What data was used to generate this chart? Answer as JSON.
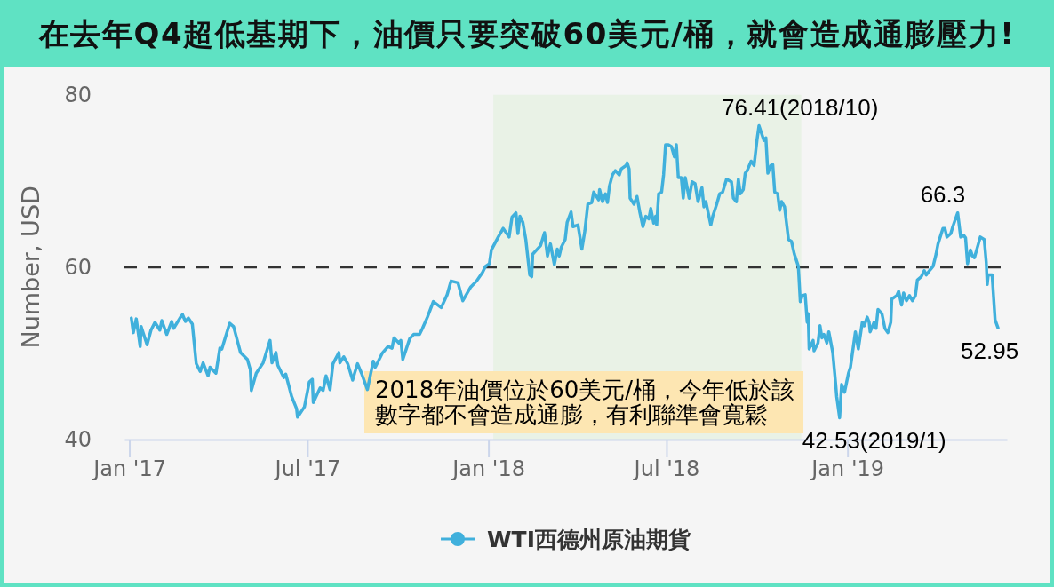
{
  "chart_data": {
    "type": "line",
    "title": "在去年Q4超低基期下，油價只要突破60美元/桶，就會造成通膨壓力!",
    "ylabel": "Number, USD",
    "x": [
      "2017-01-03",
      "2017-01-05",
      "2017-01-08",
      "2017-01-12",
      "2017-01-13",
      "2017-01-19",
      "2017-01-23",
      "2017-01-27",
      "2017-02-01",
      "2017-02-03",
      "2017-02-08",
      "2017-02-13",
      "2017-02-15",
      "2017-02-22",
      "2017-02-24",
      "2017-02-27",
      "2017-03-02",
      "2017-03-06",
      "2017-03-10",
      "2017-03-14",
      "2017-03-17",
      "2017-03-22",
      "2017-03-24",
      "2017-03-30",
      "2017-04-03",
      "2017-04-05",
      "2017-04-13",
      "2017-04-17",
      "2017-04-24",
      "2017-05-01",
      "2017-05-04",
      "2017-05-05",
      "2017-05-10",
      "2017-05-17",
      "2017-05-24",
      "2017-05-26",
      "2017-05-30",
      "2017-06-01",
      "2017-06-07",
      "2017-06-09",
      "2017-06-15",
      "2017-06-20",
      "2017-06-21",
      "2017-06-28",
      "2017-07-03",
      "2017-07-06",
      "2017-07-07",
      "2017-07-14",
      "2017-07-17",
      "2017-07-20",
      "2017-07-24",
      "2017-07-27",
      "2017-08-02",
      "2017-08-03",
      "2017-08-07",
      "2017-08-11",
      "2017-08-16",
      "2017-08-18",
      "2017-08-21",
      "2017-08-25",
      "2017-08-31",
      "2017-09-06",
      "2017-09-08",
      "2017-09-15",
      "2017-09-21",
      "2017-09-25",
      "2017-09-27",
      "2017-10-02",
      "2017-10-04",
      "2017-10-06",
      "2017-10-13",
      "2017-10-17",
      "2017-10-23",
      "2017-10-26",
      "2017-10-31",
      "2017-11-06",
      "2017-11-14",
      "2017-11-20",
      "2017-11-24",
      "2017-12-01",
      "2017-12-06",
      "2017-12-14",
      "2017-12-20",
      "2017-12-26",
      "2017-12-29",
      "2018-01-02",
      "2018-01-04",
      "2018-01-11",
      "2018-01-16",
      "2018-01-22",
      "2018-01-25",
      "2018-01-29",
      "2018-01-31",
      "2018-02-02",
      "2018-02-05",
      "2018-02-08",
      "2018-02-12",
      "2018-02-14",
      "2018-02-15",
      "2018-02-19",
      "2018-02-23",
      "2018-02-27",
      "2018-03-02",
      "2018-03-05",
      "2018-03-09",
      "2018-03-12",
      "2018-03-14",
      "2018-03-16",
      "2018-03-20",
      "2018-03-22",
      "2018-03-26",
      "2018-03-28",
      "2018-04-02",
      "2018-04-04",
      "2018-04-06",
      "2018-04-09",
      "2018-04-12",
      "2018-04-16",
      "2018-04-18",
      "2018-04-23",
      "2018-04-24",
      "2018-04-27",
      "2018-04-30",
      "2018-05-02",
      "2018-05-04",
      "2018-05-07",
      "2018-05-10",
      "2018-05-14",
      "2018-05-16",
      "2018-05-21",
      "2018-05-22",
      "2018-05-24",
      "2018-05-25",
      "2018-05-29",
      "2018-06-01",
      "2018-06-04",
      "2018-06-07",
      "2018-06-10",
      "2018-06-13",
      "2018-06-15",
      "2018-06-18",
      "2018-06-20",
      "2018-06-21",
      "2018-06-23",
      "2018-06-26",
      "2018-06-28",
      "2018-06-30",
      "2018-07-03",
      "2018-07-06",
      "2018-07-09",
      "2018-07-11",
      "2018-07-13",
      "2018-07-16",
      "2018-07-18",
      "2018-07-20",
      "2018-07-24",
      "2018-07-27",
      "2018-07-30",
      "2018-08-02",
      "2018-08-06",
      "2018-08-08",
      "2018-08-10",
      "2018-08-15",
      "2018-08-17",
      "2018-08-21",
      "2018-08-24",
      "2018-08-27",
      "2018-08-31",
      "2018-09-05",
      "2018-09-07",
      "2018-09-10",
      "2018-09-12",
      "2018-09-14",
      "2018-09-17",
      "2018-09-19",
      "2018-09-21",
      "2018-09-25",
      "2018-09-28",
      "2018-10-01",
      "2018-10-03",
      "2018-10-08",
      "2018-10-10",
      "2018-10-12",
      "2018-10-15",
      "2018-10-17",
      "2018-10-19",
      "2018-10-22",
      "2018-10-24",
      "2018-10-26",
      "2018-10-29",
      "2018-11-02",
      "2018-11-05",
      "2018-11-08",
      "2018-11-12",
      "2018-11-14",
      "2018-11-16",
      "2018-11-19",
      "2018-11-21",
      "2018-11-22",
      "2018-11-23",
      "2018-11-27",
      "2018-11-28",
      "2018-12-02",
      "2018-12-04",
      "2018-12-06",
      "2018-12-08",
      "2018-12-11",
      "2018-12-13",
      "2018-12-17",
      "2018-12-20",
      "2018-12-21",
      "2018-12-24",
      "2018-12-26",
      "2018-12-29",
      "2019-01-02",
      "2019-01-04",
      "2019-01-09",
      "2019-01-12",
      "2019-01-16",
      "2019-01-18",
      "2019-01-21",
      "2019-01-23",
      "2019-01-24",
      "2019-01-28",
      "2019-01-30",
      "2019-02-01",
      "2019-02-05",
      "2019-02-08",
      "2019-02-11",
      "2019-02-14",
      "2019-02-15",
      "2019-02-20",
      "2019-02-22",
      "2019-02-25",
      "2019-02-27",
      "2019-03-02",
      "2019-03-05",
      "2019-03-08",
      "2019-03-11",
      "2019-03-13",
      "2019-03-17",
      "2019-03-20",
      "2019-03-22",
      "2019-03-26",
      "2019-03-29",
      "2019-04-01",
      "2019-04-03",
      "2019-04-08",
      "2019-04-10",
      "2019-04-12",
      "2019-04-16",
      "2019-04-18",
      "2019-04-23",
      "2019-04-26",
      "2019-04-29",
      "2019-05-01",
      "2019-05-03",
      "2019-05-06",
      "2019-05-08",
      "2019-05-10",
      "2019-05-14",
      "2019-05-16",
      "2019-05-20",
      "2019-05-22",
      "2019-05-23",
      "2019-05-24",
      "2019-05-28",
      "2019-05-31",
      "2019-06-03"
    ],
    "series": [
      {
        "name": "WTI西德州原油期貨",
        "color": "#40b0dc",
        "values": [
          54.1,
          52.4,
          54.0,
          50.8,
          53.1,
          51.0,
          52.7,
          53.6,
          52.7,
          53.8,
          52.2,
          53.7,
          52.9,
          54.2,
          54.5,
          53.7,
          54.1,
          53.4,
          48.8,
          47.9,
          48.9,
          47.4,
          48.4,
          47.7,
          50.6,
          50.5,
          53.5,
          53.1,
          50.1,
          49.3,
          48.1,
          45.7,
          47.7,
          48.9,
          51.5,
          48.9,
          50.1,
          48.6,
          47.2,
          47.6,
          45.0,
          43.6,
          42.6,
          43.8,
          46.7,
          47.0,
          44.3,
          46.0,
          45.7,
          47.4,
          45.8,
          48.8,
          50.1,
          48.9,
          49.6,
          48.8,
          46.9,
          47.7,
          48.8,
          47.7,
          45.8,
          49.1,
          48.4,
          50.0,
          50.8,
          50.6,
          51.8,
          51.2,
          51.5,
          49.3,
          51.7,
          52.2,
          52.2,
          52.9,
          54.2,
          56.0,
          55.3,
          56.8,
          58.4,
          58.2,
          56.1,
          57.7,
          58.4,
          59.4,
          60.1,
          60.4,
          62.0,
          63.5,
          64.5,
          63.5,
          65.8,
          66.3,
          63.9,
          65.9,
          65.2,
          63.2,
          59.1,
          58.9,
          61.5,
          62.0,
          62.5,
          64.0,
          61.3,
          62.7,
          60.3,
          62.1,
          61.3,
          62.3,
          63.2,
          65.2,
          66.4,
          64.7,
          64.9,
          63.5,
          62.1,
          64.2,
          67.3,
          67.5,
          68.7,
          67.8,
          69.0,
          67.6,
          68.5,
          67.5,
          69.4,
          70.7,
          71.2,
          70.7,
          71.4,
          71.8,
          72.1,
          71.4,
          68.0,
          67.3,
          68.2,
          66.3,
          64.7,
          65.9,
          65.6,
          66.8,
          65.1,
          65.9,
          64.9,
          68.5,
          68.7,
          70.7,
          74.2,
          74.2,
          74.0,
          72.8,
          74.2,
          70.4,
          70.4,
          68.0,
          70.4,
          68.0,
          69.9,
          69.7,
          67.6,
          69.2,
          67.0,
          67.6,
          64.9,
          65.9,
          67.3,
          68.5,
          68.7,
          70.2,
          69.9,
          68.0,
          67.6,
          70.2,
          68.5,
          69.0,
          70.9,
          71.2,
          72.3,
          71.8,
          74.8,
          76.41,
          74.7,
          75.0,
          70.9,
          71.8,
          71.9,
          68.7,
          68.5,
          66.6,
          67.6,
          67.0,
          63.2,
          63.0,
          61.5,
          60.1,
          56.0,
          56.7,
          56.8,
          53.6,
          54.6,
          50.5,
          51.5,
          50.3,
          51.2,
          53.2,
          51.8,
          52.2,
          51.2,
          52.5,
          50.1,
          46.4,
          45.0,
          42.53,
          46.4,
          45.5,
          47.7,
          48.4,
          52.5,
          50.5,
          53.6,
          53.2,
          54.2,
          53.6,
          52.5,
          53.6,
          52.9,
          55.1,
          54.6,
          52.9,
          52.4,
          53.6,
          56.3,
          56.7,
          57.2,
          55.6,
          57.0,
          56.1,
          56.7,
          56.1,
          56.7,
          58.5,
          58.9,
          59.6,
          59.1,
          59.7,
          60.1,
          61.5,
          62.7,
          64.5,
          64.5,
          63.5,
          63.9,
          64.7,
          66.3,
          63.5,
          63.7,
          63.4,
          60.4,
          62.0,
          61.3,
          61.1,
          62.7,
          63.5,
          63.2,
          60.6,
          58.0,
          59.1,
          59.1,
          53.9,
          52.95
        ]
      }
    ],
    "xlim": [
      "2016-12-27",
      "2019-06-12"
    ],
    "xticks": [
      {
        "value": "2017-01-01",
        "label": "Jan '17"
      },
      {
        "value": "2017-07-01",
        "label": "Jul '17"
      },
      {
        "value": "2018-01-01",
        "label": "Jan '18"
      },
      {
        "value": "2018-07-01",
        "label": "Jul '18"
      },
      {
        "value": "2019-01-01",
        "label": "Jan '19"
      }
    ],
    "ylim": [
      40,
      80
    ],
    "yticks": [
      40,
      60,
      80
    ],
    "legend": "bottom",
    "ref_lines": [
      {
        "axis": "y",
        "value": 60,
        "color": "#333333",
        "line_style": "dashed"
      }
    ],
    "bands": [
      {
        "axis": "x",
        "from": "2018-01-06",
        "to": "2018-11-15",
        "color": "#e9f2e6"
      }
    ],
    "annotations": [
      {
        "text": "76.41(2018/10)",
        "x": "2018-10-03",
        "y": 76.41
      },
      {
        "text": "66.3",
        "x": "2019-04-23",
        "y": 66.3
      },
      {
        "text": "42.53(2019/1)",
        "x": "2018-12-24",
        "y": 42.53
      },
      {
        "text": "52.95",
        "x": "2019-06-03",
        "y": 52.95
      },
      "2018年油價位於60美元/桶，今年低於該數字都不會造成通膨，有利聯準會寬鬆"
    ]
  }
}
